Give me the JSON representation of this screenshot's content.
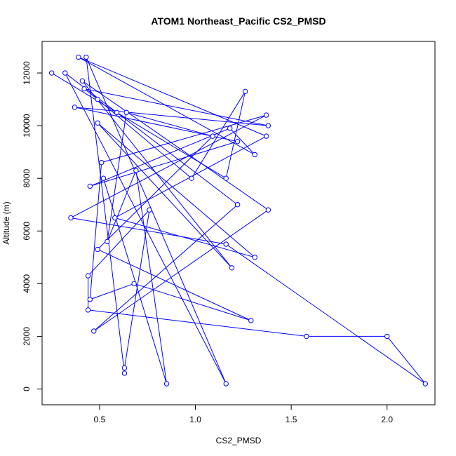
{
  "chart_data": {
    "type": "line",
    "title": "ATOM1 Northeast_Pacific CS2_PMSD",
    "xlabel": "CS2_PMSD",
    "ylabel": "Altitude (m)",
    "xlim": [
      0.2,
      2.25
    ],
    "ylim": [
      -600,
      13200
    ],
    "xticks": [
      0.5,
      1.0,
      1.5,
      2.0
    ],
    "xtick_labels": [
      "0.5",
      "1.0",
      "1.5",
      "2.0"
    ],
    "yticks": [
      0,
      2000,
      4000,
      6000,
      8000,
      10000,
      12000
    ],
    "ytick_labels": [
      "0",
      "2000",
      "4000",
      "6000",
      "8000",
      "10000",
      "12000"
    ],
    "grid": false,
    "legend": "none",
    "series_color": "#0000ff",
    "series": [
      {
        "x": [
          0.25,
          0.59,
          1.16,
          1.26,
          0.98,
          0.49,
          0.42,
          1.38,
          0.37,
          1.22,
          0.45,
          1.18,
          1.31,
          0.39,
          1.37,
          0.58,
          1.31,
          0.49,
          1.19,
          0.41,
          1.38,
          0.47,
          1.22,
          0.32,
          1.16,
          0.43,
          0.63,
          0.63,
          0.76,
          0.44,
          0.44,
          1.58,
          2.0,
          2.2,
          1.16,
          0.35,
          1.37,
          0.51,
          0.45,
          0.68,
          1.29,
          0.49,
          1.09,
          0.64,
          0.54,
          0.69,
          0.85,
          0.52
        ],
        "y": [
          12000,
          10500,
          8000,
          11300,
          8000,
          11000,
          11400,
          10000,
          10700,
          9400,
          7700,
          9900,
          8900,
          12600,
          9600,
          6500,
          5000,
          10100,
          4600,
          11700,
          6800,
          2200,
          7000,
          12000,
          200,
          12600,
          600,
          800,
          6800,
          4300,
          3000,
          2000,
          2000,
          200,
          5500,
          6500,
          10400,
          8600,
          3400,
          4000,
          2600,
          5300,
          9600,
          10500,
          5600,
          8300,
          200,
          8000
        ]
      }
    ]
  }
}
